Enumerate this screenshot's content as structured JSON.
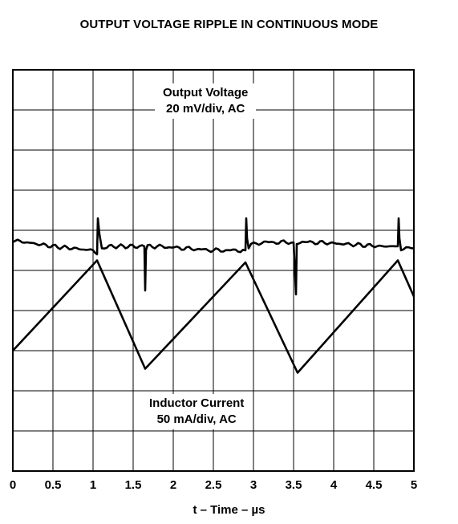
{
  "chart_data": {
    "type": "line",
    "title": "OUTPUT VOLTAGE RIPPLE IN CONTINUOUS MODE",
    "xlabel": "t – Time – µs",
    "xlim": [
      0,
      5
    ],
    "x_ticks": [
      "0",
      "0.5",
      "1",
      "1.5",
      "2",
      "2.5",
      "3",
      "3.5",
      "4",
      "4.5",
      "5"
    ],
    "grid": true,
    "annotations": [
      {
        "line1": "Output Voltage",
        "line2": "20 mV/div, AC"
      },
      {
        "line1": "Inductor Current",
        "line2": "50 mA/div, AC"
      }
    ],
    "series": [
      {
        "name": "Output Voltage",
        "units": "divisions",
        "x": [
          0,
          0.5,
          1.0,
          1.05,
          1.06,
          1.08,
          1.11,
          1.2,
          1.55,
          1.64,
          1.65,
          1.66,
          1.68,
          1.8,
          2.5,
          2.9,
          2.91,
          2.92,
          2.94,
          2.97,
          3.1,
          3.5,
          3.53,
          3.54,
          3.55,
          3.58,
          3.8,
          4.6,
          4.8,
          4.81,
          4.82,
          4.84,
          4.87,
          5.0
        ],
        "y": [
          5.75,
          5.6,
          5.5,
          5.4,
          6.3,
          5.9,
          5.55,
          5.6,
          5.6,
          5.6,
          4.5,
          5.55,
          5.6,
          5.6,
          5.5,
          5.5,
          6.3,
          5.8,
          5.55,
          5.65,
          5.7,
          5.7,
          4.4,
          5.7,
          5.7,
          5.7,
          5.7,
          5.6,
          5.6,
          6.3,
          5.8,
          5.55,
          5.55,
          5.55
        ]
      },
      {
        "name": "Inductor Current",
        "units": "divisions",
        "x": [
          0,
          1.05,
          1.65,
          2.9,
          3.55,
          4.8,
          5.0
        ],
        "y": [
          3.0,
          5.25,
          2.55,
          5.2,
          2.45,
          5.25,
          4.35
        ]
      }
    ]
  }
}
